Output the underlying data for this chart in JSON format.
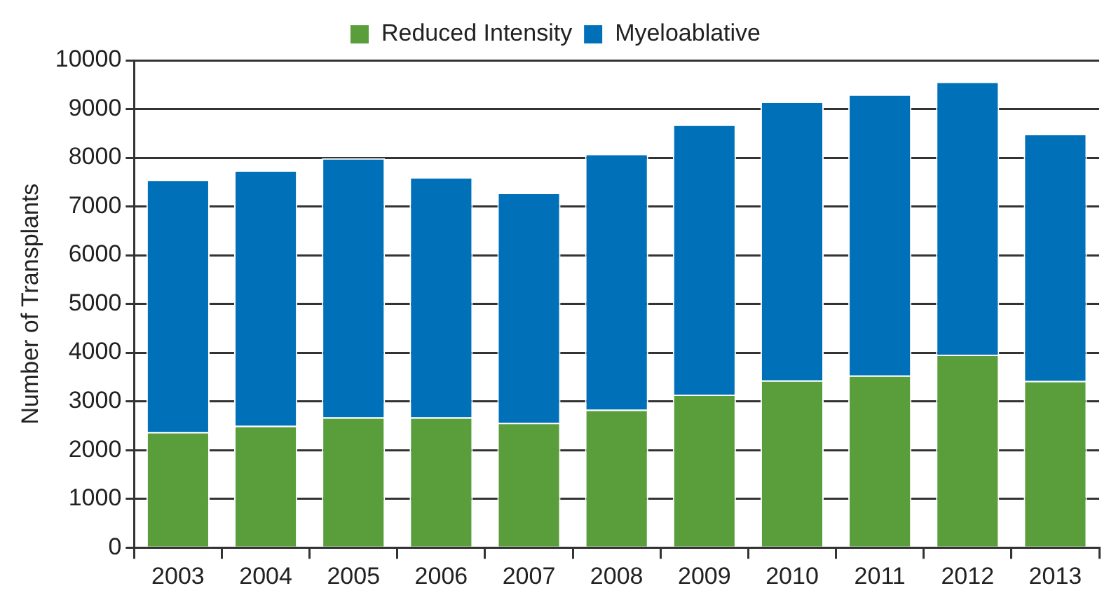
{
  "chart_data": {
    "type": "bar",
    "stacked": true,
    "ylabel": "Number of Transplants",
    "categories": [
      "2003",
      "2004",
      "2005",
      "2006",
      "2007",
      "2008",
      "2009",
      "2010",
      "2011",
      "2012",
      "2013"
    ],
    "series": [
      {
        "name": "Reduced Intensity",
        "color": "#5a9e3c",
        "values": [
          2370,
          2500,
          2670,
          2670,
          2560,
          2830,
          3140,
          3430,
          3530,
          3960,
          3420
        ]
      },
      {
        "name": "Myeloablative",
        "color": "#0071b9",
        "values": [
          5180,
          5240,
          5320,
          4930,
          4720,
          5250,
          5540,
          5720,
          5770,
          5600,
          5070
        ]
      }
    ],
    "ylim": [
      0,
      10000
    ],
    "yticks": [
      0,
      1000,
      2000,
      3000,
      4000,
      5000,
      6000,
      7000,
      8000,
      9000,
      10000
    ],
    "grid": "y",
    "legend": "top"
  }
}
